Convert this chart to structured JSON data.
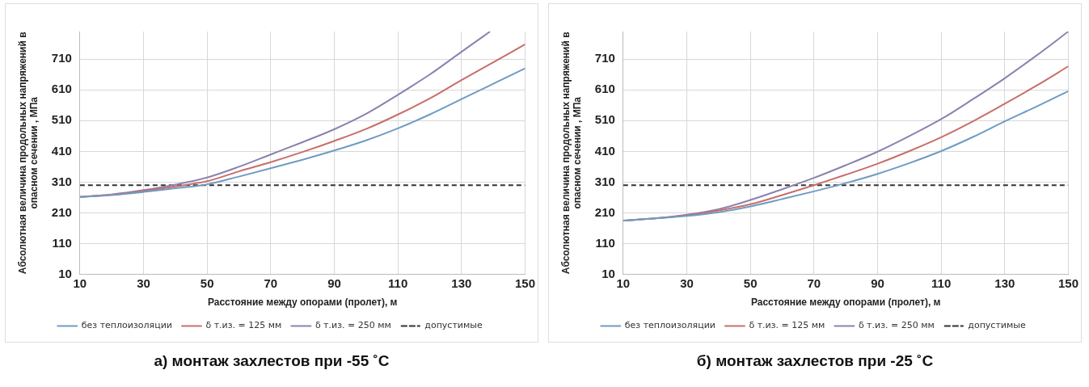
{
  "chart_data": [
    {
      "type": "line",
      "title": "а) монтаж захлестов при -55 ˚C",
      "xlabel": "Расстояние между опорами (пролет), м",
      "ylabel": "Абсолютная величина продольных напряжений в\nопасном сечении , МПа",
      "x": [
        10,
        20,
        30,
        40,
        50,
        60,
        70,
        80,
        90,
        100,
        110,
        120,
        130,
        140,
        150
      ],
      "series": [
        {
          "name": "без теплоизоляции",
          "color": "#6f9bc4",
          "values": [
            262,
            268,
            278,
            290,
            303,
            328,
            355,
            383,
            413,
            446,
            485,
            530,
            580,
            630,
            680
          ]
        },
        {
          "name": "δ т.из. = 125 мм",
          "color": "#c86e6a",
          "values": [
            262,
            269,
            281,
            296,
            313,
            345,
            375,
            408,
            444,
            483,
            530,
            582,
            642,
            700,
            758
          ]
        },
        {
          "name": "δ т.из. = 250 мм",
          "color": "#8a82b0",
          "x": [
            10,
            20,
            30,
            40,
            50,
            60,
            70,
            80,
            90,
            100,
            110,
            120,
            130,
            139
          ],
          "values": [
            262,
            270,
            284,
            302,
            325,
            360,
            400,
            440,
            482,
            532,
            594,
            660,
            734,
            800
          ]
        }
      ],
      "ref_lines": [
        {
          "axis": "y",
          "value": 300,
          "label": "допустимые",
          "color": "#333333",
          "line_style": "dashed"
        }
      ],
      "xlim": [
        10,
        150
      ],
      "xticks": [
        10,
        30,
        50,
        70,
        90,
        110,
        130,
        150
      ],
      "ylim": [
        10,
        800
      ],
      "yticks": [
        10,
        110,
        210,
        310,
        410,
        510,
        610,
        710
      ],
      "grid": true,
      "legend": "bottom",
      "marker": "none",
      "line_style": "solid"
    },
    {
      "type": "line",
      "title": "б) монтаж захлестов при -25 ˚C",
      "xlabel": "Расстояние между опорами (пролет), м",
      "ylabel": "Абсолютная величина продольных напряжений в\nопасном сечении , МПа",
      "x": [
        10,
        20,
        30,
        40,
        50,
        60,
        70,
        80,
        90,
        100,
        110,
        120,
        130,
        140,
        150
      ],
      "series": [
        {
          "name": "без теплоизоляции",
          "color": "#6f9bc4",
          "values": [
            185,
            192,
            200,
            212,
            231,
            255,
            280,
            307,
            337,
            372,
            411,
            457,
            508,
            556,
            606
          ]
        },
        {
          "name": "δ т.из. = 125 мм",
          "color": "#c86e6a",
          "values": [
            185,
            192,
            202,
            218,
            238,
            268,
            300,
            334,
            370,
            411,
            456,
            508,
            565,
            624,
            687
          ]
        },
        {
          "name": "δ т.из. = 250 мм",
          "color": "#8a82b0",
          "values": [
            185,
            192,
            204,
            222,
            252,
            287,
            324,
            365,
            409,
            460,
            515,
            580,
            648,
            722,
            800
          ]
        }
      ],
      "ref_lines": [
        {
          "axis": "y",
          "value": 300,
          "label": "допустимые",
          "color": "#333333",
          "line_style": "dashed"
        }
      ],
      "xlim": [
        10,
        150
      ],
      "xticks": [
        10,
        30,
        50,
        70,
        90,
        110,
        130,
        150
      ],
      "ylim": [
        10,
        800
      ],
      "yticks": [
        10,
        110,
        210,
        310,
        410,
        510,
        610,
        710
      ],
      "grid": true,
      "legend": "bottom",
      "marker": "none",
      "line_style": "solid"
    }
  ]
}
